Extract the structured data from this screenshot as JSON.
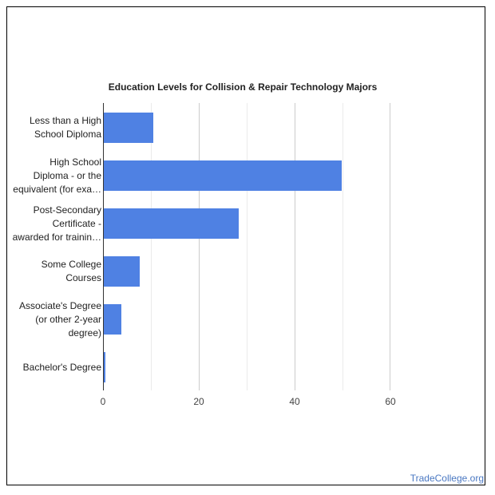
{
  "chart_data": {
    "type": "bar",
    "orientation": "horizontal",
    "title": "Education Levels for Collision & Repair Technology Majors",
    "categories": [
      "Less than a High School Diploma",
      "High School Diploma - or the equivalent (for exa…",
      "Post-Secondary Certificate - awarded for trainin…",
      "Some College Courses",
      "Associate's Degree (or other 2-year degree)",
      "Bachelor's Degree"
    ],
    "category_lines": [
      [
        "Less than a High",
        "School Diploma"
      ],
      [
        "High School",
        "Diploma - or the",
        "equivalent (for exa…"
      ],
      [
        "Post-Secondary",
        "Certificate -",
        "awarded for trainin…"
      ],
      [
        "Some College",
        "Courses"
      ],
      [
        "Associate's Degree",
        "(or other 2-year",
        "degree)"
      ],
      [
        "Bachelor's Degree"
      ]
    ],
    "values": [
      10.5,
      49.8,
      28.3,
      7.7,
      3.9,
      0.5
    ],
    "xlabel": "",
    "ylabel": "",
    "xlim": [
      0,
      60
    ],
    "xticks": [
      "0",
      "20",
      "40",
      "60"
    ],
    "grid": true,
    "legend": "none",
    "bar_color": "#4f81e3"
  },
  "footer": {
    "brand": "TradeCollege.org"
  }
}
